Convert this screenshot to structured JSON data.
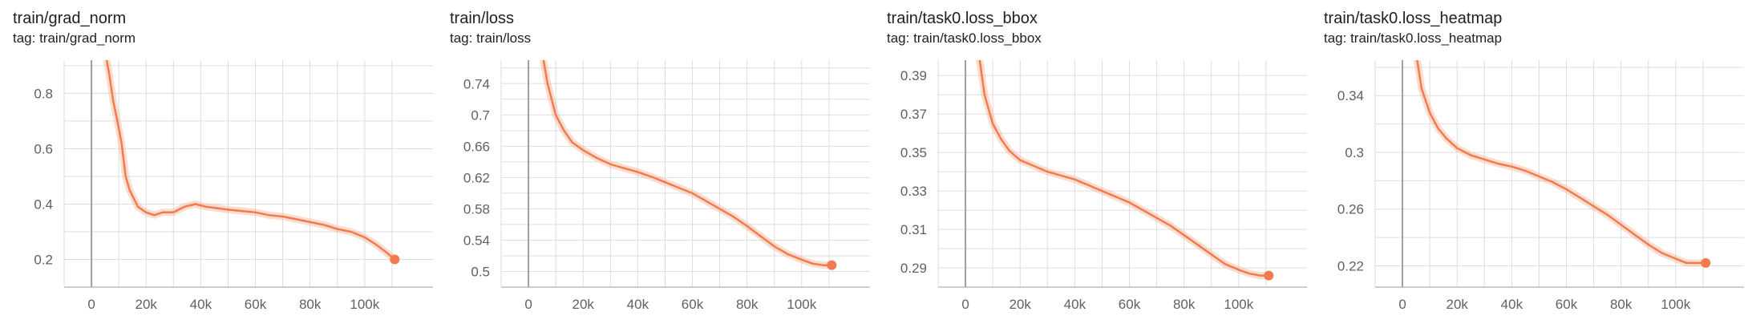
{
  "colors": {
    "series": "#f07c4d",
    "raw": "#f6b39a",
    "grid": "#dddddd",
    "axis": "#9e9e9e",
    "zero_line": "#9e9e9e"
  },
  "chart_data": [
    {
      "type": "line",
      "title": "train/grad_norm",
      "subtitle": "tag: train/grad_norm",
      "xlim": [
        -10000,
        125000
      ],
      "ylim": [
        0.1,
        0.92
      ],
      "xticks": [
        0,
        20000,
        40000,
        60000,
        80000,
        100000
      ],
      "xtick_labels": [
        "0",
        "20k",
        "40k",
        "60k",
        "80k",
        "100k"
      ],
      "yticks": [
        0.2,
        0.4,
        0.6,
        0.8
      ],
      "ytick_labels": [
        "0.2",
        "0.4",
        "0.6",
        "0.8"
      ],
      "grid": true,
      "series": [
        {
          "x": [
            5000,
            6500,
            8000,
            9500,
            11000,
            12500,
            14000,
            15500,
            17000,
            20000,
            23000,
            26000,
            30000,
            34000,
            38000,
            42000,
            46000,
            50000,
            55000,
            60000,
            65000,
            70000,
            75000,
            80000,
            85000,
            90000,
            95000,
            100000,
            104000,
            108000,
            111000
          ],
          "y": [
            0.95,
            0.87,
            0.77,
            0.7,
            0.62,
            0.5,
            0.45,
            0.42,
            0.39,
            0.37,
            0.36,
            0.37,
            0.37,
            0.39,
            0.4,
            0.39,
            0.385,
            0.38,
            0.375,
            0.37,
            0.36,
            0.355,
            0.345,
            0.335,
            0.325,
            0.31,
            0.3,
            0.28,
            0.255,
            0.225,
            0.2
          ]
        }
      ]
    },
    {
      "type": "line",
      "title": "train/loss",
      "subtitle": "tag: train/loss",
      "xlim": [
        -10000,
        125000
      ],
      "ylim": [
        0.48,
        0.77
      ],
      "xticks": [
        0,
        20000,
        40000,
        60000,
        80000,
        100000
      ],
      "xtick_labels": [
        "0",
        "20k",
        "40k",
        "60k",
        "80k",
        "100k"
      ],
      "yticks": [
        0.5,
        0.54,
        0.58,
        0.62,
        0.66,
        0.7,
        0.74
      ],
      "ytick_labels": [
        "0.5",
        "0.54",
        "0.58",
        "0.62",
        "0.66",
        "0.7",
        "0.74"
      ],
      "grid": true,
      "series": [
        {
          "x": [
            5000,
            7000,
            10000,
            13000,
            16000,
            20000,
            25000,
            30000,
            35000,
            40000,
            45000,
            50000,
            55000,
            60000,
            65000,
            70000,
            75000,
            80000,
            85000,
            90000,
            95000,
            100000,
            104000,
            108000,
            111000
          ],
          "y": [
            0.78,
            0.74,
            0.7,
            0.68,
            0.665,
            0.655,
            0.645,
            0.637,
            0.632,
            0.627,
            0.621,
            0.614,
            0.607,
            0.6,
            0.59,
            0.58,
            0.57,
            0.558,
            0.545,
            0.532,
            0.522,
            0.515,
            0.51,
            0.508,
            0.508
          ]
        }
      ]
    },
    {
      "type": "line",
      "title": "train/task0.loss_bbox",
      "subtitle": "tag: train/task0.loss_bbox",
      "xlim": [
        -10000,
        125000
      ],
      "ylim": [
        0.28,
        0.398
      ],
      "xticks": [
        0,
        20000,
        40000,
        60000,
        80000,
        100000
      ],
      "xtick_labels": [
        "0",
        "20k",
        "40k",
        "60k",
        "80k",
        "100k"
      ],
      "yticks": [
        0.29,
        0.31,
        0.33,
        0.35,
        0.37,
        0.39
      ],
      "ytick_labels": [
        "0.29",
        "0.31",
        "0.33",
        "0.35",
        "0.37",
        "0.39"
      ],
      "grid": true,
      "series": [
        {
          "x": [
            5000,
            7000,
            10000,
            13000,
            16000,
            20000,
            25000,
            30000,
            35000,
            40000,
            45000,
            50000,
            55000,
            60000,
            65000,
            70000,
            75000,
            80000,
            85000,
            90000,
            95000,
            100000,
            104000,
            108000,
            111000
          ],
          "y": [
            0.4,
            0.38,
            0.365,
            0.357,
            0.351,
            0.346,
            0.343,
            0.34,
            0.338,
            0.336,
            0.333,
            0.33,
            0.327,
            0.324,
            0.32,
            0.316,
            0.312,
            0.307,
            0.302,
            0.297,
            0.292,
            0.289,
            0.287,
            0.286,
            0.286
          ]
        }
      ]
    },
    {
      "type": "line",
      "title": "train/task0.loss_heatmap",
      "subtitle": "tag: train/task0.loss_heatmap",
      "xlim": [
        -10000,
        125000
      ],
      "ylim": [
        0.205,
        0.365
      ],
      "xticks": [
        0,
        20000,
        40000,
        60000,
        80000,
        100000
      ],
      "xtick_labels": [
        "0",
        "20k",
        "40k",
        "60k",
        "80k",
        "100k"
      ],
      "yticks": [
        0.22,
        0.26,
        0.3,
        0.34
      ],
      "ytick_labels": [
        "0.22",
        "0.26",
        "0.3",
        "0.34"
      ],
      "grid": true,
      "series": [
        {
          "x": [
            5000,
            7000,
            10000,
            13000,
            16000,
            20000,
            25000,
            30000,
            35000,
            40000,
            45000,
            50000,
            55000,
            60000,
            65000,
            70000,
            75000,
            80000,
            85000,
            90000,
            95000,
            100000,
            104000,
            108000,
            111000
          ],
          "y": [
            0.37,
            0.345,
            0.328,
            0.317,
            0.31,
            0.303,
            0.298,
            0.295,
            0.292,
            0.29,
            0.287,
            0.283,
            0.279,
            0.274,
            0.268,
            0.262,
            0.256,
            0.249,
            0.242,
            0.235,
            0.229,
            0.225,
            0.222,
            0.222,
            0.222
          ]
        }
      ]
    }
  ]
}
